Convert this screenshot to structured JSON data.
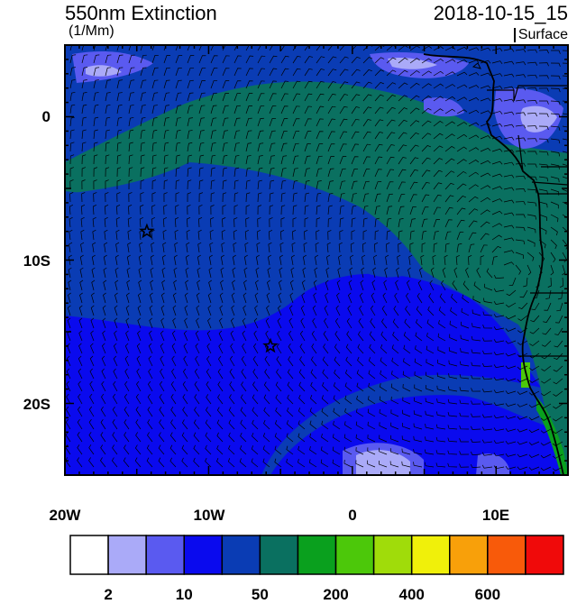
{
  "header": {
    "title": "550nm Extinction",
    "units": "(1/Mm)",
    "date": "2018-10-15_15",
    "level": "Surface"
  },
  "map": {
    "lat_labels": [
      "0",
      "10S",
      "20S"
    ],
    "lon_labels": [
      "20W",
      "10W",
      "0",
      "10E"
    ],
    "markers": [
      {
        "name": "star-1",
        "lon": -14.3,
        "lat": -8.0
      },
      {
        "name": "star-2",
        "lon": -5.7,
        "lat": -16.0
      }
    ]
  },
  "colorbar": {
    "colors": [
      "#ffffff",
      "#aaaaf8",
      "#5a5af0",
      "#0a0aee",
      "#0a3cb4",
      "#0a7060",
      "#0aa01e",
      "#4cc80a",
      "#a0dc0a",
      "#f0f00a",
      "#f8a00a",
      "#f85a0a",
      "#f00a0a"
    ],
    "labels": [
      "2",
      "10",
      "50",
      "200",
      "400",
      "600"
    ]
  }
}
